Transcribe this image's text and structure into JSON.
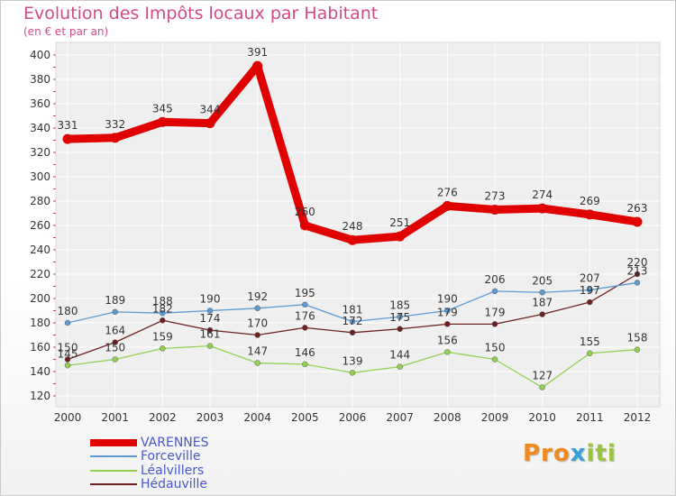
{
  "title": "Evolution des Impôts locaux par Habitant",
  "subtitle": "(en € et par an)",
  "logo": {
    "parts": [
      "Pro",
      "x",
      "iti"
    ],
    "colors": [
      "#f08a1c",
      "#3aa0d8",
      "#9ac43c"
    ]
  },
  "chart_data": {
    "type": "line",
    "x": [
      "2000",
      "2001",
      "2002",
      "2003",
      "2004",
      "2005",
      "2006",
      "2007",
      "2008",
      "2009",
      "2010",
      "2011",
      "2012"
    ],
    "ylim": [
      120,
      400
    ],
    "yticks": [
      120,
      140,
      160,
      180,
      200,
      220,
      240,
      260,
      280,
      300,
      320,
      340,
      360,
      380,
      400
    ],
    "grid": true,
    "legend_position": "bottom-left",
    "series": [
      {
        "name": "VARENNES",
        "color": "#e00000",
        "values": [
          331,
          332,
          345,
          344,
          391,
          260,
          248,
          251,
          276,
          273,
          274,
          269,
          263
        ]
      },
      {
        "name": "Forceville",
        "color": "#5b9bd5",
        "values": [
          180,
          189,
          188,
          190,
          192,
          195,
          181,
          185,
          190,
          206,
          205,
          207,
          213
        ]
      },
      {
        "name": "Léalvillers",
        "color": "#92d050",
        "values": [
          145,
          150,
          159,
          161,
          147,
          146,
          139,
          144,
          156,
          150,
          127,
          155,
          158
        ]
      },
      {
        "name": "Hédauville",
        "color": "#6e1f1f",
        "values": [
          150,
          164,
          182,
          174,
          170,
          176,
          172,
          175,
          179,
          179,
          187,
          197,
          220
        ]
      }
    ],
    "data_labels": [
      [
        "331",
        "332",
        "345",
        "344",
        "391",
        "260",
        "248",
        "251",
        "276",
        "273",
        "274",
        "269",
        "263"
      ],
      [
        "180",
        "189",
        "188",
        "190",
        "192",
        "195",
        "181",
        "185",
        "190",
        "206",
        "205",
        "207",
        "213"
      ],
      [
        "145",
        "150",
        "159",
        "161",
        "147",
        "146",
        "139",
        "144",
        "156",
        "150",
        "127",
        "155",
        "158"
      ],
      [
        "150",
        "164",
        "182",
        "174",
        "170",
        "176",
        "172",
        "175",
        "179",
        "179",
        "187",
        "197",
        "220"
      ]
    ]
  }
}
